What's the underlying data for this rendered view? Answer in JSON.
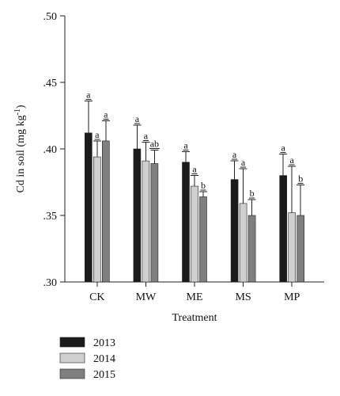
{
  "chart_data": {
    "type": "bar",
    "categories": [
      "CK",
      "MW",
      "ME",
      "MS",
      "MP"
    ],
    "series": [
      {
        "name": "2013",
        "color": "#1b1b1b",
        "values": [
          0.412,
          0.4,
          0.39,
          0.377,
          0.38
        ],
        "errors": [
          0.024,
          0.018,
          0.008,
          0.014,
          0.016
        ],
        "labels": [
          "a",
          "a",
          "a",
          "a",
          "a"
        ]
      },
      {
        "name": "2014",
        "color": "#cfcfcf",
        "values": [
          0.394,
          0.391,
          0.372,
          0.359,
          0.352
        ],
        "errors": [
          0.012,
          0.014,
          0.008,
          0.026,
          0.035
        ],
        "labels": [
          "a",
          "a",
          "a",
          "a",
          "a"
        ]
      },
      {
        "name": "2015",
        "color": "#7f7f7f",
        "values": [
          0.406,
          0.389,
          0.364,
          0.35,
          0.35
        ],
        "errors": [
          0.015,
          0.01,
          0.004,
          0.012,
          0.023
        ],
        "labels": [
          "a",
          "ab",
          "b",
          "b",
          "b"
        ]
      }
    ],
    "title": "",
    "xlabel": "Treatment",
    "ylabel": {
      "base": "Cd in soil (mg kg",
      "superscript": "-1",
      "suffix": ")"
    },
    "ylim": [
      0.3,
      0.5
    ],
    "yticks": [
      0.3,
      0.35,
      0.4,
      0.45,
      0.5
    ],
    "ytick_labels": [
      ".30",
      ".35",
      ".40",
      ".45",
      ".50"
    ],
    "grid": false,
    "legend_position": "bottom-left",
    "sig_label_style": "underlined"
  }
}
